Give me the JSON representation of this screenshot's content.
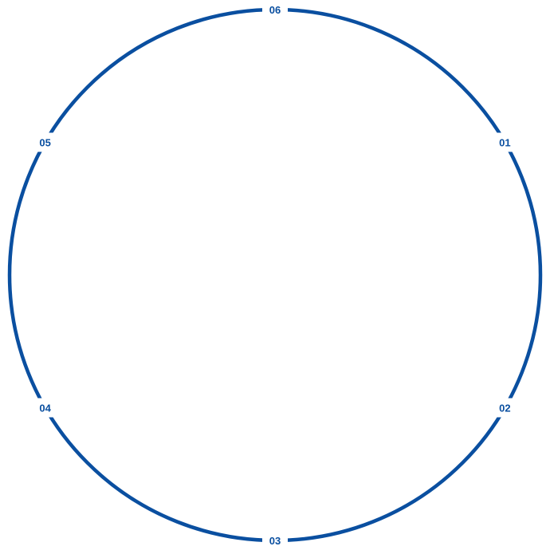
{
  "color": "#0a4fa0",
  "labels": [
    {
      "text": "01",
      "angle_deg": -30
    },
    {
      "text": "02",
      "angle_deg": 30
    },
    {
      "text": "03",
      "angle_deg": 90
    },
    {
      "text": "04",
      "angle_deg": 150
    },
    {
      "text": "05",
      "angle_deg": 210
    },
    {
      "text": "06",
      "angle_deg": 270
    }
  ]
}
